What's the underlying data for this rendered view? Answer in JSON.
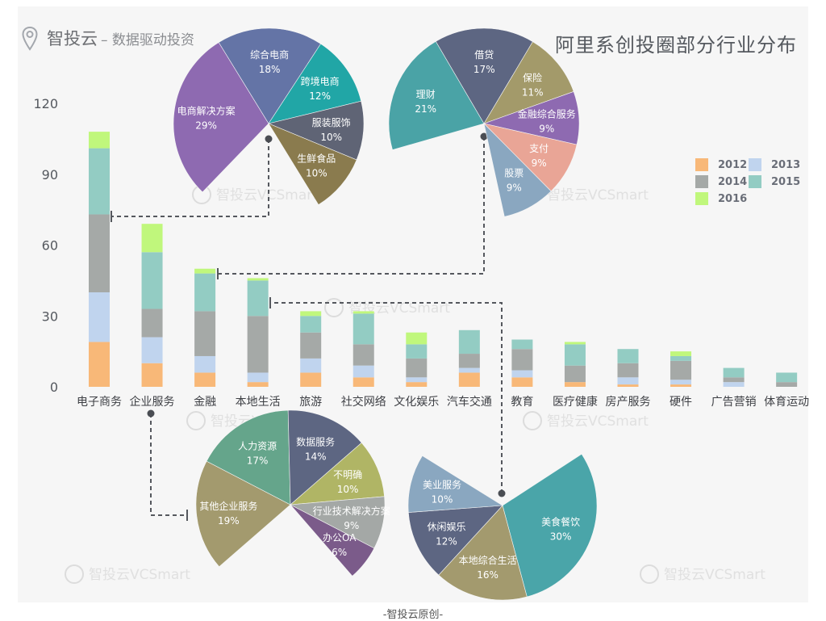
{
  "header": {
    "brand": "智投云",
    "tagline": "– 数据驱动投资",
    "title": "阿里系创投圈部分行业分布",
    "footer": "-智投云原创-",
    "watermark": "智投云VCSmart",
    "pin_icon": "location-pin-icon"
  },
  "chart_data": [
    {
      "type": "bar",
      "stacked": true,
      "categories": [
        "电子商务",
        "企业服务",
        "金融",
        "本地生活",
        "旅游",
        "社交网络",
        "文化娱乐",
        "汽车交通",
        "教育",
        "医疗健康",
        "房产服务",
        "硬件",
        "广告营销",
        "体育运动"
      ],
      "series": [
        {
          "name": "2012",
          "color": "#f8b878",
          "values": [
            19,
            10,
            6,
            2,
            6,
            4,
            2,
            6,
            4,
            2,
            1,
            1,
            0,
            0
          ]
        },
        {
          "name": "2013",
          "color": "#c0d4ee",
          "values": [
            21,
            11,
            7,
            4,
            6,
            5,
            2,
            2,
            3,
            0,
            3,
            2,
            2,
            0
          ]
        },
        {
          "name": "2014",
          "color": "#a5a9a7",
          "values": [
            33,
            12,
            19,
            24,
            11,
            9,
            8,
            6,
            9,
            7,
            6,
            8,
            2,
            2
          ]
        },
        {
          "name": "2015",
          "color": "#93ccc3",
          "values": [
            28,
            24,
            16,
            15,
            7,
            13,
            6,
            10,
            4,
            9,
            6,
            2,
            4,
            4
          ]
        },
        {
          "name": "2016",
          "color": "#c0f77c",
          "values": [
            7,
            12,
            2,
            1,
            2,
            1,
            5,
            0,
            0,
            1,
            0,
            2,
            0,
            0
          ]
        }
      ],
      "yticks": [
        "0",
        "30",
        "60",
        "90",
        "120"
      ],
      "ylim": [
        0,
        120
      ],
      "grid": false,
      "legend": "right"
    },
    {
      "type": "pie",
      "linked_category": "电子商务",
      "slices": [
        {
          "label": "电商解决方案",
          "value": 29,
          "pct": "29%",
          "color": "#8e6ab1"
        },
        {
          "label": "综合电商",
          "value": 18,
          "pct": "18%",
          "color": "#6474a6"
        },
        {
          "label": "跨境电商",
          "value": 12,
          "pct": "12%",
          "color": "#21a6a6"
        },
        {
          "label": "服装服饰",
          "value": 10,
          "pct": "10%",
          "color": "#5f6475"
        },
        {
          "label": "生鲜食品",
          "value": 10,
          "pct": "10%",
          "color": "#8a7b4e"
        }
      ]
    },
    {
      "type": "pie",
      "linked_category": "金融",
      "slices": [
        {
          "label": "理财",
          "value": 21,
          "pct": "21%",
          "color": "#4aa3a6"
        },
        {
          "label": "借贷",
          "value": 17,
          "pct": "17%",
          "color": "#5d6682"
        },
        {
          "label": "保险",
          "value": 11,
          "pct": "11%",
          "color": "#a39a6a"
        },
        {
          "label": "金融综合服务",
          "value": 9,
          "pct": "9%",
          "color": "#8e6ab1"
        },
        {
          "label": "支付",
          "value": 9,
          "pct": "9%",
          "color": "#e9a596"
        },
        {
          "label": "股票",
          "value": 9,
          "pct": "9%",
          "color": "#8aa7c0"
        }
      ]
    },
    {
      "type": "pie",
      "linked_category": "企业服务",
      "slices": [
        {
          "label": "其他企业服务",
          "value": 19,
          "pct": "19%",
          "color": "#a39a6e"
        },
        {
          "label": "人力资源",
          "value": 17,
          "pct": "17%",
          "color": "#65a58b"
        },
        {
          "label": "数据服务",
          "value": 14,
          "pct": "14%",
          "color": "#5d6682"
        },
        {
          "label": "不明确",
          "value": 10,
          "pct": "10%",
          "color": "#b0b565"
        },
        {
          "label": "行业技术解决方案",
          "value": 9,
          "pct": "9%",
          "color": "#a4a8a6"
        },
        {
          "label": "办公OA",
          "value": 6,
          "pct": "6%",
          "color": "#7b5b8a"
        }
      ]
    },
    {
      "type": "pie",
      "linked_category": "本地生活",
      "slices": [
        {
          "label": "美食餐饮",
          "value": 30,
          "pct": "30%",
          "color": "#4aa5a9"
        },
        {
          "label": "本地综合生活",
          "value": 16,
          "pct": "16%",
          "color": "#a39a6e"
        },
        {
          "label": "休闲娱乐",
          "value": 12,
          "pct": "12%",
          "color": "#5d6682"
        },
        {
          "label": "美业服务",
          "value": 10,
          "pct": "10%",
          "color": "#8aa7c0"
        }
      ]
    }
  ]
}
